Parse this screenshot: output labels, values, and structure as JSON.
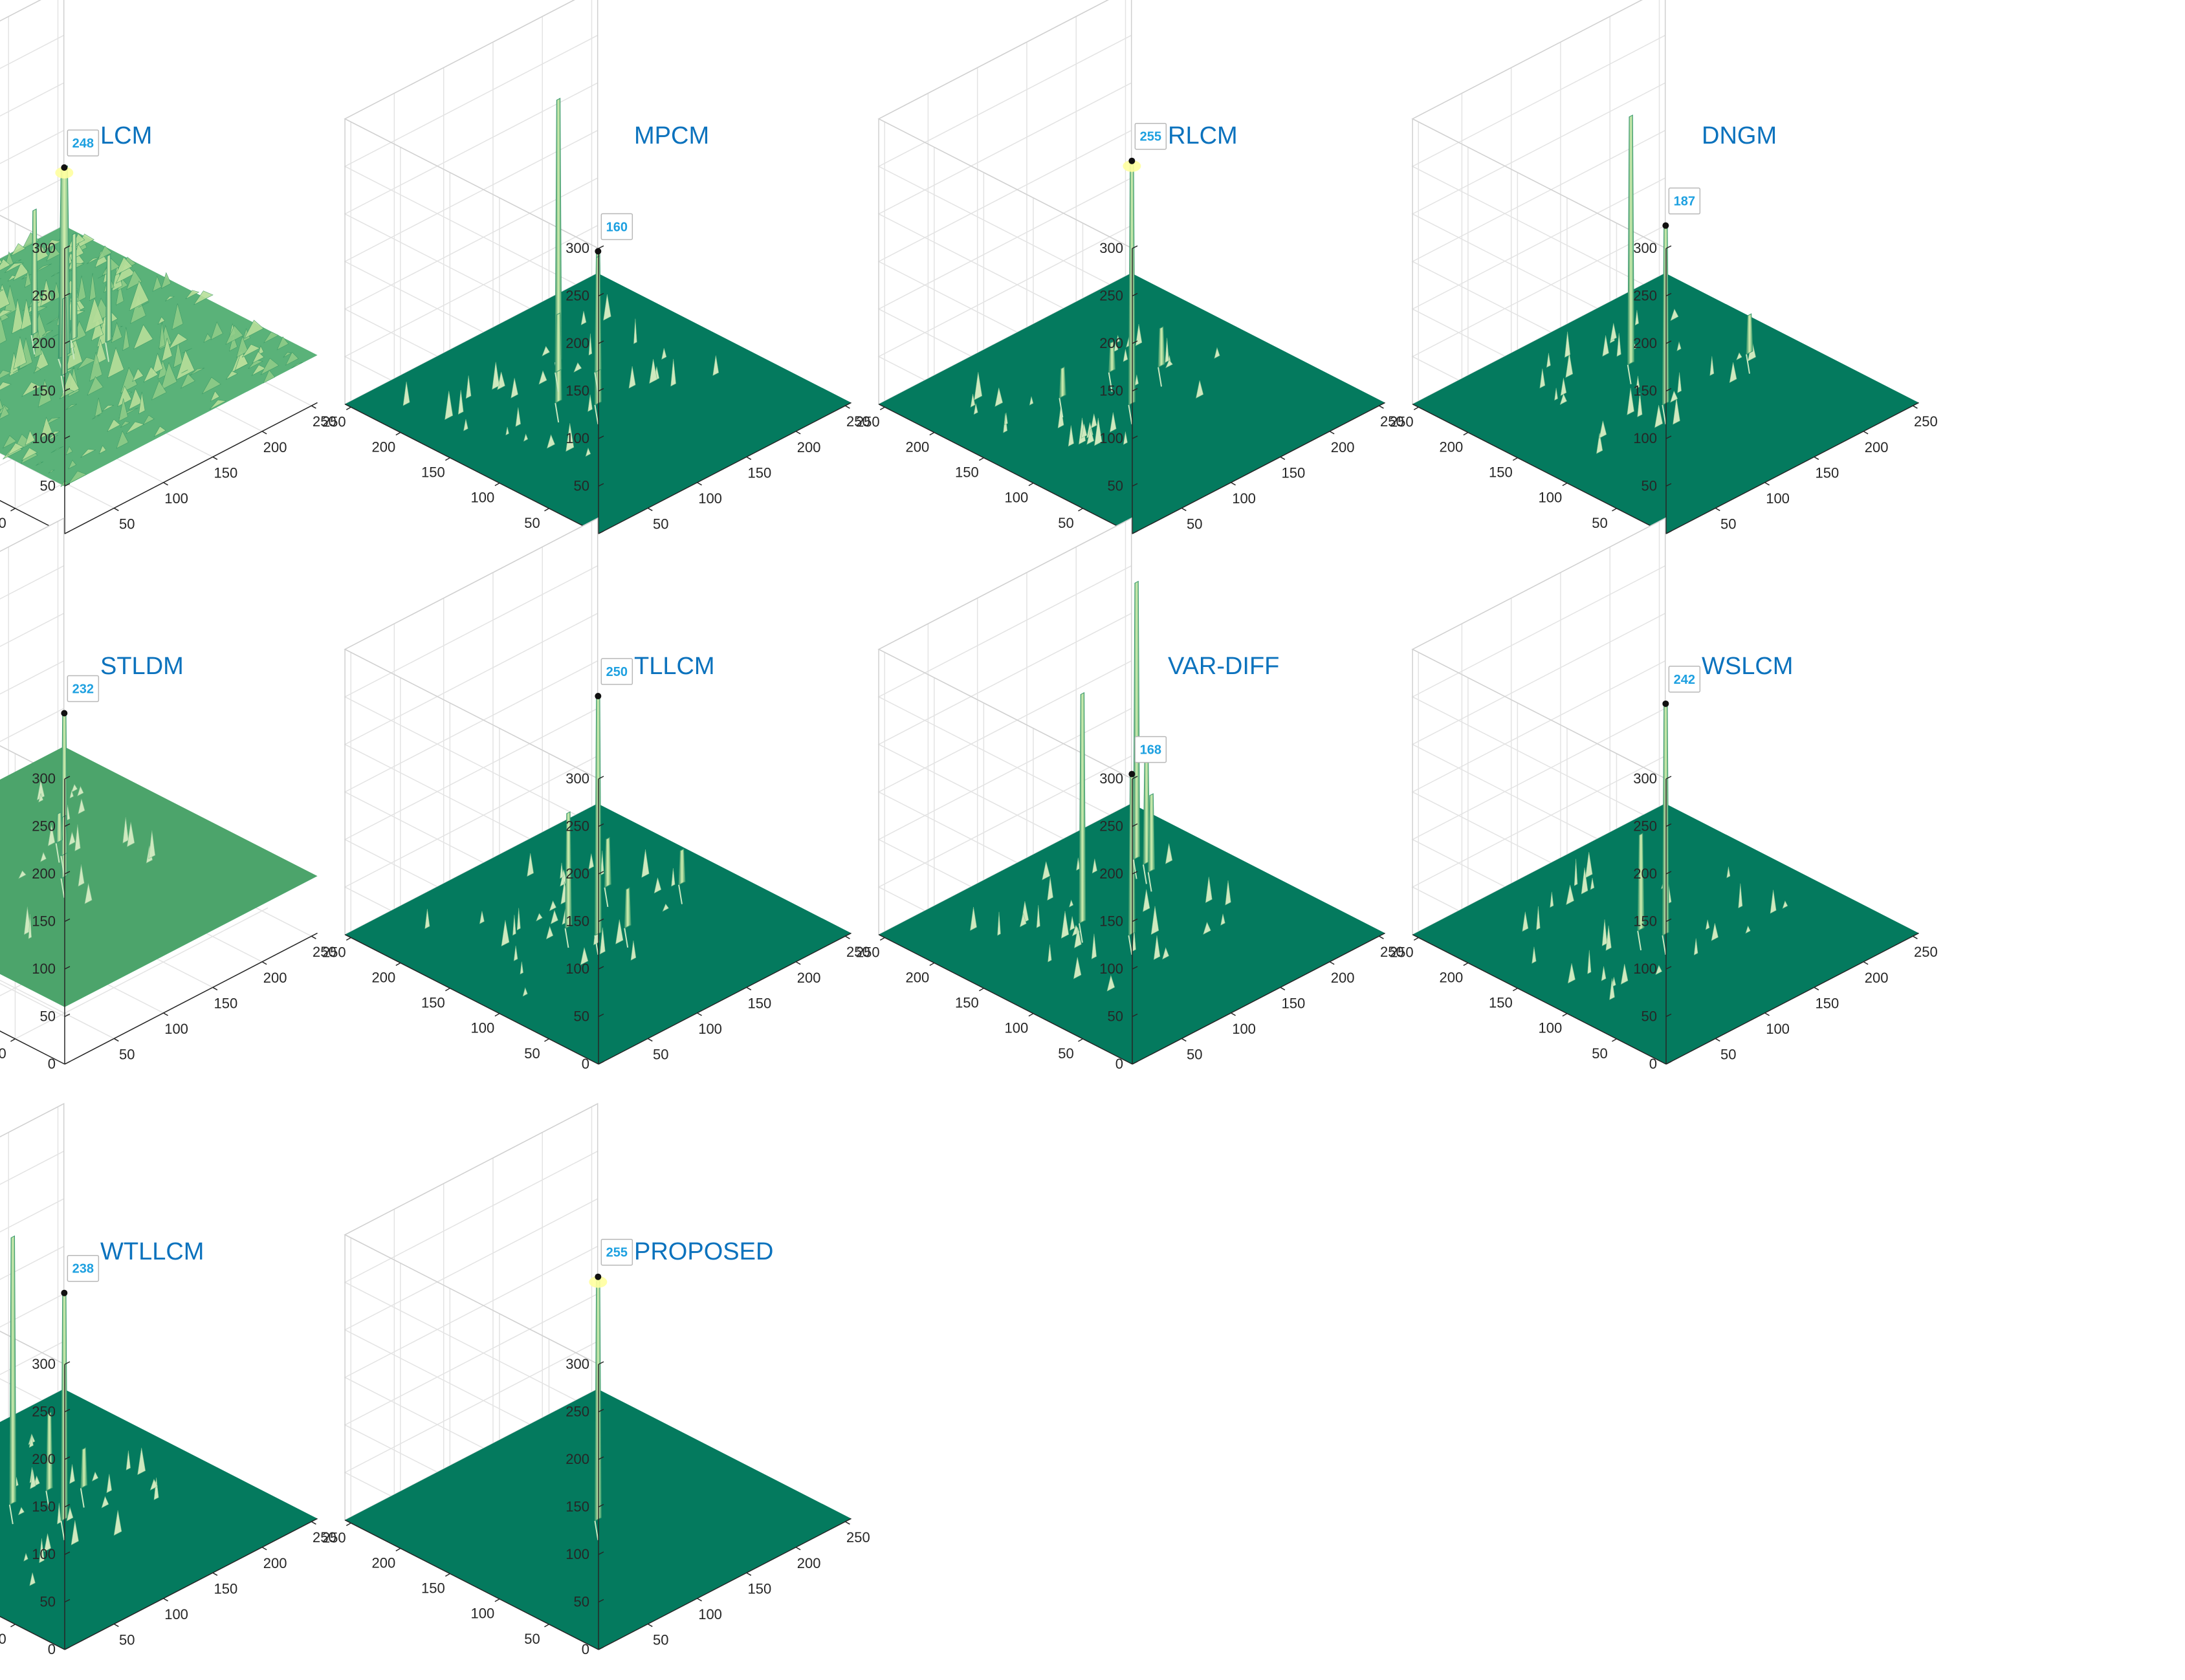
{
  "figure": {
    "panels": [
      "LCM",
      "MPCM",
      "RLCM",
      "DNGM",
      "STLDM",
      "TLLCM",
      "VAR-DIFF",
      "WSLCM",
      "WTLLCM",
      "PROPOSED"
    ]
  },
  "style": {
    "floor_color": "#047a5e",
    "pale_floor_color": "#4ca46b",
    "surface_light": "#b8df9a",
    "surface_mid": "#5ab279",
    "title_color": "#0b72bd",
    "datatip_text_color": "#1da0e0",
    "grid_color": "#e3e3e3",
    "peak_highlight": "#ffffa0"
  },
  "chart_data": [
    {
      "type": "surface",
      "title": "LCM",
      "surface": "rough",
      "floor": 50,
      "zlim": [
        0,
        300
      ],
      "zticks": [
        0,
        50,
        100,
        150,
        200,
        250,
        300
      ],
      "xlim": [
        0,
        256
      ],
      "xticks": [
        50,
        100,
        150,
        200,
        250
      ],
      "ylim": [
        0,
        256
      ],
      "yticks": [
        50,
        100,
        150,
        200,
        250
      ],
      "datatip": {
        "x": 128,
        "y": 128,
        "z": 248,
        "label": "248"
      },
      "peaks": [
        {
          "x": 128,
          "y": 128,
          "z": 248
        },
        {
          "x": 135,
          "y": 165,
          "z": 180
        },
        {
          "x": 150,
          "y": 140,
          "z": 160
        },
        {
          "x": 165,
          "y": 120,
          "z": 140
        },
        {
          "x": 110,
          "y": 110,
          "z": 130
        }
      ]
    },
    {
      "type": "surface",
      "title": "MPCM",
      "surface": "flat",
      "floor": 0,
      "zlim": [
        0,
        300
      ],
      "zticks": [
        0,
        50,
        100,
        150,
        200,
        250,
        300
      ],
      "xlim": [
        0,
        256
      ],
      "xticks": [
        50,
        100,
        150,
        200,
        250
      ],
      "ylim": [
        0,
        256
      ],
      "yticks": [
        50,
        100,
        150,
        200,
        250
      ],
      "datatip": {
        "x": 128,
        "y": 128,
        "z": 160,
        "label": "160"
      },
      "peaks": [
        {
          "x": 128,
          "y": 128,
          "z": 160
        },
        {
          "x": 150,
          "y": 190,
          "z": 275
        },
        {
          "x": 160,
          "y": 160,
          "z": 120
        },
        {
          "x": 110,
          "y": 150,
          "z": 90
        },
        {
          "x": 140,
          "y": 180,
          "z": 60
        }
      ]
    },
    {
      "type": "surface",
      "title": "RLCM",
      "surface": "flat",
      "floor": 0,
      "zlim": [
        0,
        300
      ],
      "zticks": [
        0,
        50,
        100,
        150,
        200,
        250,
        300
      ],
      "xlim": [
        0,
        256
      ],
      "xticks": [
        50,
        100,
        150,
        200,
        250
      ],
      "ylim": [
        0,
        256
      ],
      "yticks": [
        50,
        100,
        150,
        200,
        250
      ],
      "datatip": {
        "x": 128,
        "y": 128,
        "z": 255,
        "label": "255"
      },
      "peaks": [
        {
          "x": 128,
          "y": 128,
          "z": 255
        },
        {
          "x": 180,
          "y": 150,
          "z": 40
        },
        {
          "x": 100,
          "y": 170,
          "z": 30
        },
        {
          "x": 150,
          "y": 170,
          "z": 30
        }
      ]
    },
    {
      "type": "surface",
      "title": "DNGM",
      "surface": "flat",
      "floor": 0,
      "zlim": [
        0,
        300
      ],
      "zticks": [
        0,
        50,
        100,
        150,
        200,
        250,
        300
      ],
      "xlim": [
        0,
        256
      ],
      "xticks": [
        50,
        100,
        150,
        200,
        250
      ],
      "ylim": [
        0,
        256
      ],
      "yticks": [
        50,
        100,
        150,
        200,
        250
      ],
      "datatip": {
        "x": 128,
        "y": 128,
        "z": 187,
        "label": "187"
      },
      "peaks": [
        {
          "x": 128,
          "y": 128,
          "z": 187
        },
        {
          "x": 150,
          "y": 185,
          "z": 260
        },
        {
          "x": 220,
          "y": 135,
          "z": 40
        }
      ]
    },
    {
      "type": "surface",
      "title": "STLDM",
      "surface": "pale",
      "floor": 60,
      "zlim": [
        0,
        300
      ],
      "zticks": [
        0,
        50,
        100,
        150,
        200,
        250,
        300
      ],
      "xlim": [
        0,
        256
      ],
      "xticks": [
        50,
        100,
        150,
        200,
        250
      ],
      "ylim": [
        0,
        256
      ],
      "yticks": [
        50,
        100,
        150,
        200,
        250
      ],
      "datatip": {
        "x": 128,
        "y": 128,
        "z": 232,
        "label": "232"
      },
      "peaks": [
        {
          "x": 128,
          "y": 128,
          "z": 232
        },
        {
          "x": 150,
          "y": 150,
          "z": 100
        },
        {
          "x": 160,
          "y": 165,
          "z": 90
        }
      ]
    },
    {
      "type": "surface",
      "title": "TLLCM",
      "surface": "flat",
      "floor": 0,
      "zlim": [
        0,
        300
      ],
      "zticks": [
        0,
        50,
        100,
        150,
        200,
        250,
        300
      ],
      "xlim": [
        0,
        256
      ],
      "xticks": [
        50,
        100,
        150,
        200,
        250
      ],
      "ylim": [
        0,
        256
      ],
      "yticks": [
        50,
        100,
        150,
        200,
        250
      ],
      "datatip": {
        "x": 128,
        "y": 128,
        "z": 250,
        "label": "250"
      },
      "peaks": [
        {
          "x": 128,
          "y": 128,
          "z": 250
        },
        {
          "x": 120,
          "y": 150,
          "z": 120
        },
        {
          "x": 180,
          "y": 170,
          "z": 50
        },
        {
          "x": 150,
          "y": 120,
          "z": 40
        },
        {
          "x": 220,
          "y": 135,
          "z": 35
        }
      ]
    },
    {
      "type": "surface",
      "title": "VAR-DIFF",
      "surface": "flat",
      "floor": 0,
      "zlim": [
        0,
        300
      ],
      "zticks": [
        0,
        50,
        100,
        150,
        200,
        250,
        300
      ],
      "xlim": [
        0,
        256
      ],
      "xticks": [
        50,
        100,
        150,
        200,
        250
      ],
      "ylim": [
        0,
        256
      ],
      "yticks": [
        50,
        100,
        150,
        200,
        250
      ],
      "datatip": {
        "x": 128,
        "y": 128,
        "z": 168,
        "label": "168"
      },
      "peaks": [
        {
          "x": 128,
          "y": 128,
          "z": 168
        },
        {
          "x": 115,
          "y": 165,
          "z": 240
        },
        {
          "x": 205,
          "y": 200,
          "z": 290
        },
        {
          "x": 205,
          "y": 190,
          "z": 120
        },
        {
          "x": 200,
          "y": 180,
          "z": 80
        }
      ]
    },
    {
      "type": "surface",
      "title": "WSLCM",
      "surface": "flat",
      "floor": 0,
      "zlim": [
        0,
        300
      ],
      "zticks": [
        0,
        50,
        100,
        150,
        200,
        250,
        300
      ],
      "xlim": [
        0,
        256
      ],
      "xticks": [
        50,
        100,
        150,
        200,
        250
      ],
      "ylim": [
        0,
        256
      ],
      "yticks": [
        50,
        100,
        150,
        200,
        250
      ],
      "datatip": {
        "x": 128,
        "y": 128,
        "z": 242,
        "label": "242"
      },
      "peaks": [
        {
          "x": 128,
          "y": 128,
          "z": 242
        },
        {
          "x": 120,
          "y": 145,
          "z": 100
        }
      ]
    },
    {
      "type": "surface",
      "title": "WTLLCM",
      "surface": "flat",
      "floor": 0,
      "zlim": [
        0,
        300
      ],
      "zticks": [
        0,
        50,
        100,
        150,
        200,
        250,
        300
      ],
      "xlim": [
        0,
        256
      ],
      "xticks": [
        50,
        100,
        150,
        200,
        250
      ],
      "ylim": [
        0,
        256
      ],
      "yticks": [
        50,
        100,
        150,
        200,
        250
      ],
      "datatip": {
        "x": 128,
        "y": 128,
        "z": 238,
        "label": "238"
      },
      "peaks": [
        {
          "x": 128,
          "y": 128,
          "z": 238
        },
        {
          "x": 118,
          "y": 170,
          "z": 280
        },
        {
          "x": 150,
          "y": 165,
          "z": 80
        },
        {
          "x": 170,
          "y": 150,
          "z": 40
        }
      ]
    },
    {
      "type": "surface",
      "title": "PROPOSED",
      "surface": "flat",
      "floor": 0,
      "zlim": [
        0,
        300
      ],
      "zticks": [
        0,
        50,
        100,
        150,
        200,
        250,
        300
      ],
      "xlim": [
        0,
        256
      ],
      "xticks": [
        50,
        100,
        150,
        200,
        250
      ],
      "ylim": [
        0,
        256
      ],
      "yticks": [
        50,
        100,
        150,
        200,
        250
      ],
      "datatip": {
        "x": 128,
        "y": 128,
        "z": 255,
        "label": "255"
      },
      "peaks": [
        {
          "x": 128,
          "y": 128,
          "z": 255
        }
      ]
    }
  ]
}
